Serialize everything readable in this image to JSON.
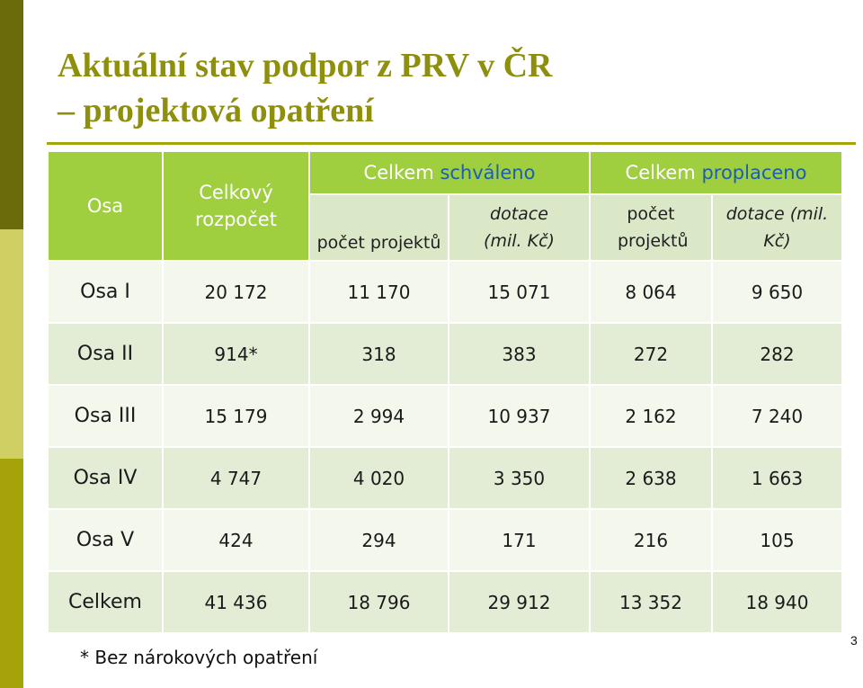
{
  "title_line1": "Aktuální stav podpor z PRV v ČR",
  "title_line2": "– projektová opatření",
  "header": {
    "axis": "Osa",
    "budget": "Celkový rozpočet",
    "approved_prefix": "Celkem ",
    "approved_word": "schváleno",
    "paid_prefix": "Celkem ",
    "paid_word": "proplaceno",
    "approved_count": "počet projektů",
    "approved_grant": "dotace (mil. Kč)",
    "paid_count": "počet projektů",
    "paid_grant": "dotace (mil. Kč)"
  },
  "rows": [
    {
      "axis": "Osa I",
      "budget": "20 172",
      "appr_count": "11 170",
      "appr_grant": "15 071",
      "paid_count": "8 064",
      "paid_grant": "9 650"
    },
    {
      "axis": "Osa II",
      "budget": "914*",
      "appr_count": "318",
      "appr_grant": "383",
      "paid_count": "272",
      "paid_grant": "282"
    },
    {
      "axis": "Osa III",
      "budget": "15 179",
      "appr_count": "2 994",
      "appr_grant": "10 937",
      "paid_count": "2 162",
      "paid_grant": "7 240"
    },
    {
      "axis": "Osa IV",
      "budget": "4 747",
      "appr_count": "4 020",
      "appr_grant": "3 350",
      "paid_count": "2 638",
      "paid_grant": "1 663"
    },
    {
      "axis": "Osa V",
      "budget": "424",
      "appr_count": "294",
      "appr_grant": "171",
      "paid_count": "216",
      "paid_grant": "105"
    },
    {
      "axis": "Celkem",
      "budget": "41 436",
      "appr_count": "18 796",
      "appr_grant": "29 912",
      "paid_count": "13 352",
      "paid_grant": "18 940"
    }
  ],
  "footnote": "* Bez nárokových opatření",
  "page_number": "3",
  "colors": {
    "title": "#8e8f0c",
    "header_bright": "#9fce3f",
    "header_light": "#dbe8c8",
    "accent_blue": "#1c5fb0"
  }
}
